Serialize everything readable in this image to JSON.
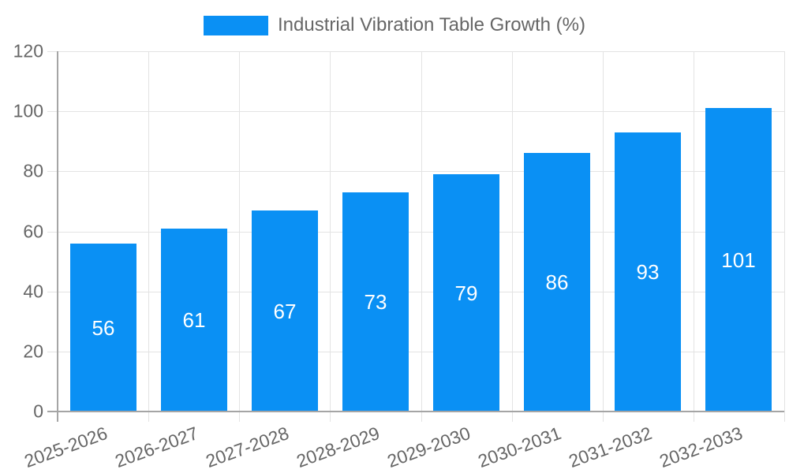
{
  "legend": {
    "label": "Industrial Vibration Table Growth (%)"
  },
  "chart_data": {
    "type": "bar",
    "title": "Industrial Vibration Table Growth (%)",
    "categories": [
      "2025-2026",
      "2026-2027",
      "2027-2028",
      "2028-2029",
      "2029-2030",
      "2030-2031",
      "2031-2032",
      "2032-2033"
    ],
    "values": [
      56,
      61,
      67,
      73,
      79,
      86,
      93,
      101
    ],
    "xlabel": "",
    "ylabel": "",
    "ylim": [
      0,
      120
    ],
    "yticks": [
      0,
      20,
      40,
      60,
      80,
      100,
      120
    ],
    "bar_color": "#0a90f4",
    "bar_label_color": "#ffffff",
    "grid": true,
    "legend_position": "top-center",
    "x_tick_rotation_deg": -20
  },
  "colors": {
    "background": "#ffffff",
    "grid_line": "#e3e3e3",
    "axis_line": "#a5a5a5",
    "tick_label": "#666666",
    "legend_text": "#666666"
  }
}
